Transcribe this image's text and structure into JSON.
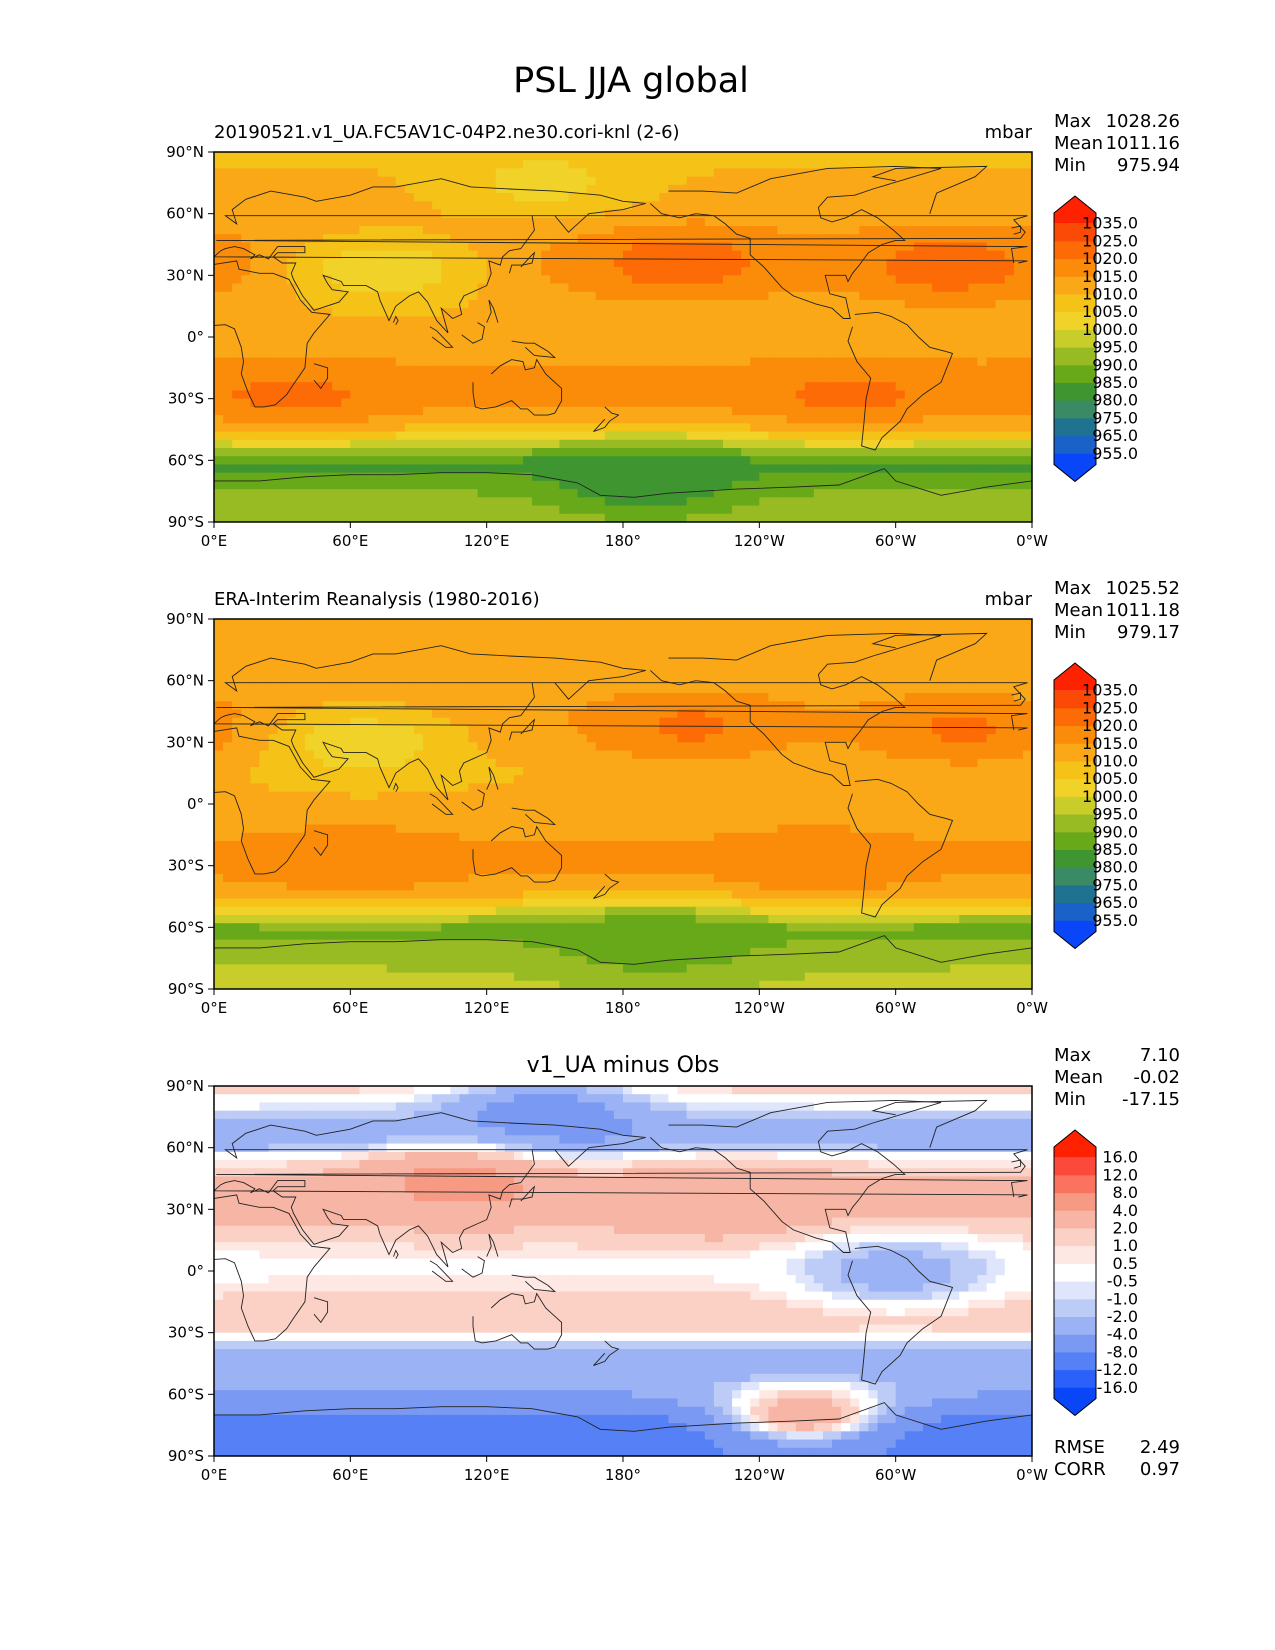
{
  "figure_title": "PSL JJA global",
  "chart_data": [
    {
      "type": "heatmap",
      "title": "20190521.v1_UA.FC5AV1C-04P2.ne30.cori-knl (2-6)",
      "units": "mbar",
      "stats": [
        {
          "label": "Max",
          "value": "1028.26"
        },
        {
          "label": "Mean",
          "value": "1011.16"
        },
        {
          "label": "Min",
          "value": "975.94"
        }
      ],
      "colorbar": {
        "levels": [
          "1035.0",
          "1025.0",
          "1020.0",
          "1015.0",
          "1010.0",
          "1005.0",
          "1000.0",
          "995.0",
          "990.0",
          "985.0",
          "980.0",
          "975.0",
          "965.0",
          "955.0"
        ],
        "colors": [
          "#ff2200",
          "#fb4a05",
          "#fd6b07",
          "#fb8c0a",
          "#faa817",
          "#f5c218",
          "#f1d228",
          "#c8cd2a",
          "#98bb23",
          "#68a91a",
          "#3f9630",
          "#3a8a66",
          "#1f7390",
          "#1b62c8",
          "#0846f8"
        ]
      },
      "ylabel_ticks": [
        "90°N",
        "60°N",
        "30°N",
        "0°",
        "30°S",
        "60°S",
        "90°S"
      ],
      "xlabel_ticks": [
        "0°E",
        "60°E",
        "120°E",
        "180°",
        "120°W",
        "60°W",
        "0°W"
      ],
      "ylim": [
        -90,
        90
      ],
      "xlim": [
        0,
        360
      ],
      "zonal_profile": [
        [
          90,
          1009
        ],
        [
          75,
          1011
        ],
        [
          60,
          1012
        ],
        [
          45,
          1015
        ],
        [
          30,
          1015
        ],
        [
          15,
          1012
        ],
        [
          0,
          1011
        ],
        [
          -15,
          1015
        ],
        [
          -30,
          1018
        ],
        [
          -45,
          1008
        ],
        [
          -55,
          993
        ],
        [
          -62,
          983
        ],
        [
          -70,
          988
        ],
        [
          -80,
          992
        ],
        [
          -90,
          994
        ]
      ],
      "high_centers": [
        {
          "lon": 205,
          "lat": 36,
          "value": 1023
        },
        {
          "lon": 325,
          "lat": 34,
          "value": 1023
        },
        {
          "lon": 35,
          "lat": -29,
          "value": 1021
        },
        {
          "lon": 280,
          "lat": -29,
          "value": 1021
        }
      ],
      "low_centers": [
        {
          "lon": 75,
          "lat": 33,
          "value": 1000
        },
        {
          "lon": 145,
          "lat": 75,
          "value": 1003
        },
        {
          "lon": 190,
          "lat": -70,
          "value": 980
        }
      ]
    },
    {
      "type": "heatmap",
      "title": "ERA-Interim Reanalysis (1980-2016)",
      "units": "mbar",
      "stats": [
        {
          "label": "Max",
          "value": "1025.52"
        },
        {
          "label": "Mean",
          "value": "1011.18"
        },
        {
          "label": "Min",
          "value": "979.17"
        }
      ],
      "colorbar": {
        "levels": [
          "1035.0",
          "1025.0",
          "1020.0",
          "1015.0",
          "1010.0",
          "1005.0",
          "1000.0",
          "995.0",
          "990.0",
          "985.0",
          "980.0",
          "975.0",
          "965.0",
          "955.0"
        ],
        "colors": [
          "#ff2200",
          "#fb4a05",
          "#fd6b07",
          "#fb8c0a",
          "#faa817",
          "#f5c218",
          "#f1d228",
          "#c8cd2a",
          "#98bb23",
          "#68a91a",
          "#3f9630",
          "#3a8a66",
          "#1f7390",
          "#1b62c8",
          "#0846f8"
        ]
      },
      "ylabel_ticks": [
        "90°N",
        "60°N",
        "30°N",
        "0°",
        "30°S",
        "60°S",
        "90°S"
      ],
      "xlabel_ticks": [
        "0°E",
        "60°E",
        "120°E",
        "180°",
        "120°W",
        "60°W",
        "0°W"
      ],
      "ylim": [
        -90,
        90
      ],
      "xlim": [
        0,
        360
      ],
      "zonal_profile": [
        [
          90,
          1011
        ],
        [
          75,
          1012
        ],
        [
          60,
          1011
        ],
        [
          45,
          1014
        ],
        [
          30,
          1013
        ],
        [
          15,
          1010
        ],
        [
          0,
          1011
        ],
        [
          -15,
          1014
        ],
        [
          -30,
          1017
        ],
        [
          -45,
          1010
        ],
        [
          -55,
          996
        ],
        [
          -62,
          987
        ],
        [
          -70,
          992
        ],
        [
          -80,
          995
        ],
        [
          -90,
          996
        ]
      ],
      "high_centers": [
        {
          "lon": 210,
          "lat": 38,
          "value": 1021
        },
        {
          "lon": 330,
          "lat": 36,
          "value": 1021
        },
        {
          "lon": 60,
          "lat": -29,
          "value": 1019
        },
        {
          "lon": 265,
          "lat": -30,
          "value": 1019
        }
      ],
      "low_centers": [
        {
          "lon": 65,
          "lat": 30,
          "value": 1001
        },
        {
          "lon": 195,
          "lat": -67,
          "value": 985
        }
      ]
    },
    {
      "type": "heatmap",
      "title": "v1_UA minus Obs",
      "units": "",
      "stats": [
        {
          "label": "Max",
          "value": "7.10"
        },
        {
          "label": "Mean",
          "value": "-0.02"
        },
        {
          "label": "Min",
          "value": "-17.15"
        }
      ],
      "metrics": [
        {
          "label": "RMSE",
          "value": "2.49"
        },
        {
          "label": "CORR",
          "value": "0.97"
        }
      ],
      "colorbar": {
        "levels": [
          "16.0",
          "12.0",
          "8.0",
          "4.0",
          "2.0",
          "1.0",
          "0.5",
          "-0.5",
          "-1.0",
          "-2.0",
          "-4.0",
          "-8.0",
          "-12.0",
          "-16.0"
        ],
        "colors": [
          "#ff2200",
          "#fb4a3c",
          "#f9735f",
          "#f79a83",
          "#f7b6a5",
          "#fbd1c6",
          "#fde8e3",
          "#ffffff",
          "#dfe6fb",
          "#bcccf7",
          "#9bb2f4",
          "#7a99f2",
          "#5680f5",
          "#2b61f8",
          "#0846f8"
        ]
      },
      "ylabel_ticks": [
        "90°N",
        "60°N",
        "30°N",
        "0°",
        "30°S",
        "60°S",
        "90°S"
      ],
      "xlabel_ticks": [
        "0°E",
        "60°E",
        "120°E",
        "180°",
        "120°W",
        "60°W",
        "0°W"
      ],
      "ylim": [
        -90,
        90
      ],
      "xlim": [
        0,
        360
      ],
      "zonal_profile": [
        [
          90,
          1.5
        ],
        [
          80,
          -0.5
        ],
        [
          70,
          -3
        ],
        [
          62,
          -3
        ],
        [
          55,
          0.3
        ],
        [
          45,
          2.2
        ],
        [
          35,
          2.6
        ],
        [
          25,
          2.2
        ],
        [
          15,
          1.2
        ],
        [
          5,
          0.3
        ],
        [
          -5,
          0.6
        ],
        [
          -15,
          1.5
        ],
        [
          -25,
          1.8
        ],
        [
          -33,
          0.3
        ],
        [
          -40,
          -3
        ],
        [
          -50,
          -4
        ],
        [
          -58,
          -3.5
        ],
        [
          -65,
          -6
        ],
        [
          -72,
          -10
        ],
        [
          -80,
          -12
        ],
        [
          -90,
          -10
        ]
      ],
      "high_centers": [
        {
          "lon": 225,
          "lat": 35,
          "value": 4
        },
        {
          "lon": 110,
          "lat": 45,
          "value": 5
        },
        {
          "lon": 260,
          "lat": -70,
          "value": 4
        }
      ],
      "low_centers": [
        {
          "lon": 145,
          "lat": 75,
          "value": -6
        },
        {
          "lon": 300,
          "lat": 0,
          "value": -3
        }
      ]
    }
  ]
}
